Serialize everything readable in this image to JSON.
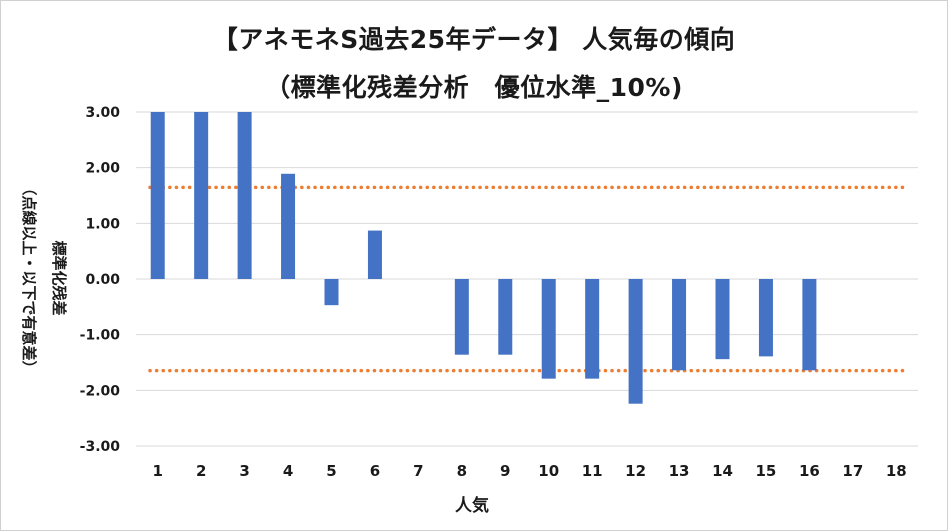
{
  "title_line1": "【アネモネS過去25年データ】 人気毎の傾向",
  "title_line2": "（標準化残差分析　優位水準_10%)",
  "chart_data": {
    "type": "bar",
    "categories": [
      "1",
      "2",
      "3",
      "4",
      "5",
      "6",
      "7",
      "8",
      "9",
      "10",
      "11",
      "12",
      "13",
      "14",
      "15",
      "16",
      "17",
      "18"
    ],
    "values": [
      3.0,
      3.0,
      3.0,
      1.89,
      -0.47,
      0.87,
      null,
      -1.36,
      -1.36,
      -1.79,
      -1.79,
      -2.24,
      -1.64,
      -1.44,
      -1.39,
      -1.64,
      null,
      null
    ],
    "reference_lines": [
      1.645,
      -1.645
    ],
    "ylim": [
      -3.0,
      3.0
    ],
    "yticks": [
      "3.00",
      "2.00",
      "1.00",
      "0.00",
      "-1.00",
      "-2.00",
      "-3.00"
    ],
    "ytick_values": [
      3,
      2,
      1,
      0,
      -1,
      -2,
      -3
    ],
    "xlabel": "人気",
    "ylabel_line1": "標準化残差",
    "ylabel_line2": "（点線以上・以下で有意差）",
    "bar_color": "#4472C4",
    "ref_line_color": "#ED7D31",
    "grid": true,
    "grid_color": "#d9d9d9"
  }
}
